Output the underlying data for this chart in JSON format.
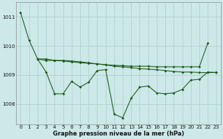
{
  "background_color": "#cce8e8",
  "line_color": "#1a5c1a",
  "grid_color": "#aacccc",
  "title": "Graphe pression niveau de la mer (hPa)",
  "xlim": [
    -0.5,
    23.5
  ],
  "ylim": [
    1007.3,
    1011.5
  ],
  "yticks": [
    1008,
    1009,
    1010,
    1011
  ],
  "xticks": [
    0,
    1,
    2,
    3,
    4,
    5,
    6,
    7,
    8,
    9,
    10,
    11,
    12,
    13,
    14,
    15,
    16,
    17,
    18,
    19,
    20,
    21,
    22,
    23
  ],
  "s1_x": [
    0,
    1,
    2,
    3,
    4,
    5,
    6,
    7,
    8,
    9,
    10,
    11,
    12,
    13,
    14,
    15,
    16,
    17,
    18,
    19,
    20,
    21,
    22
  ],
  "s1_y": [
    1011.15,
    1010.2,
    1009.55,
    1009.5,
    1009.5,
    1009.48,
    1009.45,
    1009.42,
    1009.4,
    1009.38,
    1009.35,
    1009.33,
    1009.32,
    1009.3,
    1009.3,
    1009.3,
    1009.28,
    1009.28,
    1009.28,
    1009.28,
    1009.28,
    1009.28,
    1010.1
  ],
  "s2_x": [
    2,
    3,
    4,
    5,
    6,
    7,
    8,
    9,
    10,
    11,
    12,
    13,
    14,
    15,
    16,
    17,
    18,
    19,
    20,
    21,
    22,
    23
  ],
  "s2_y": [
    1009.55,
    1009.55,
    1009.5,
    1009.5,
    1009.48,
    1009.45,
    1009.42,
    1009.38,
    1009.35,
    1009.3,
    1009.28,
    1009.25,
    1009.22,
    1009.2,
    1009.18,
    1009.15,
    1009.12,
    1009.1,
    1009.1,
    1009.08,
    1009.08,
    1009.08
  ],
  "s3_x": [
    2,
    3,
    4,
    5,
    6,
    7,
    8,
    9,
    10,
    11,
    12,
    13,
    14,
    15,
    16,
    17,
    18,
    19,
    20,
    21,
    22,
    23
  ],
  "s3_y": [
    1009.55,
    1009.1,
    1008.35,
    1008.35,
    1008.78,
    1008.58,
    1008.75,
    1009.15,
    1009.18,
    1007.65,
    1007.52,
    1008.2,
    1008.58,
    1008.62,
    1008.38,
    1008.35,
    1008.38,
    1008.5,
    1008.82,
    1008.85,
    1009.1,
    1009.08
  ],
  "figsize": [
    3.2,
    2.0
  ],
  "dpi": 100,
  "title_fontsize": 6.0,
  "tick_fontsize": 5.2
}
